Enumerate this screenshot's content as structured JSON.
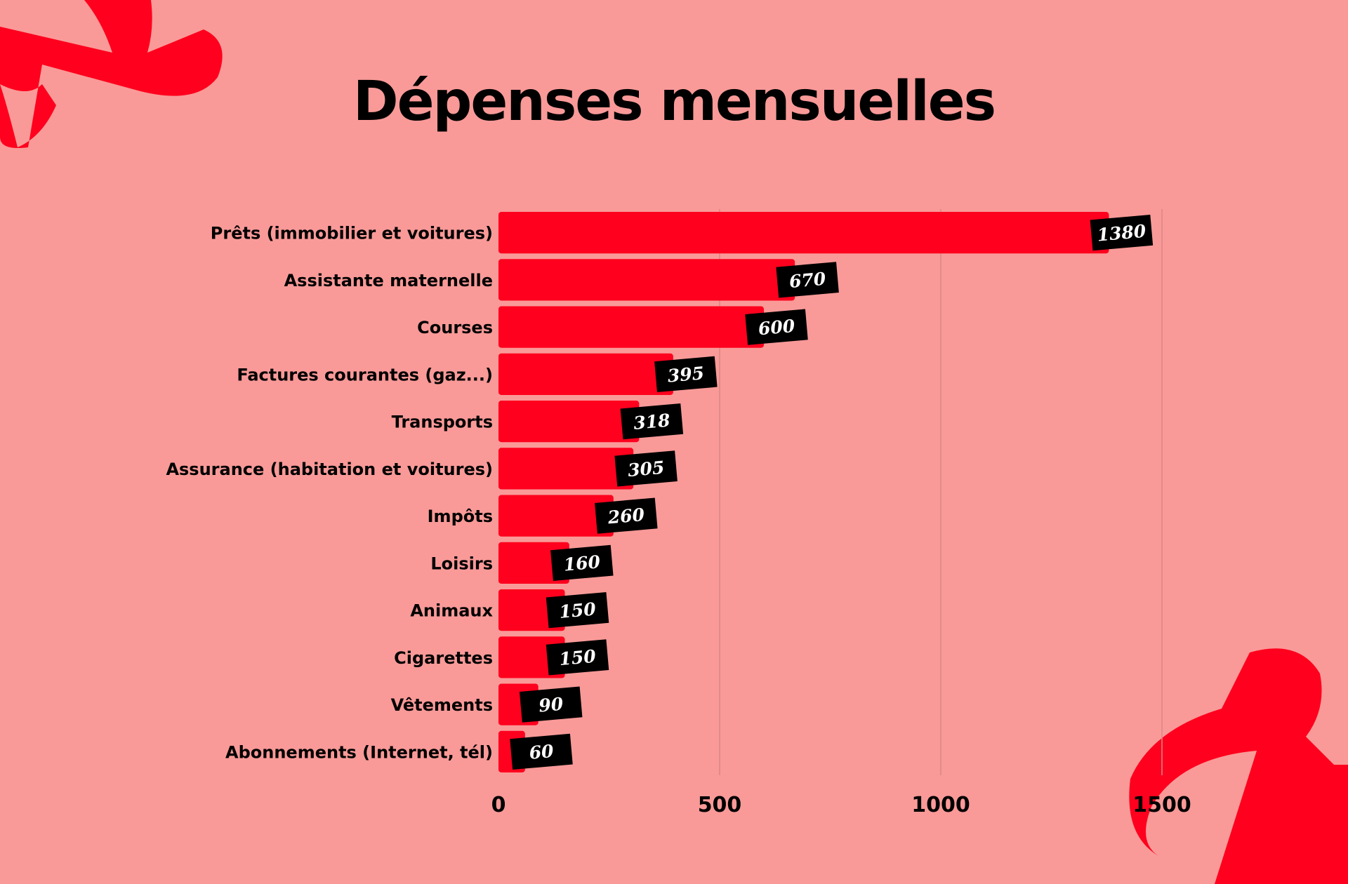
{
  "title": "Dépenses mensuelles",
  "colors": {
    "background": "#F99A98",
    "bar": "#FF001E",
    "label_box": "#000000",
    "label_text": "#FFFFFF",
    "gridline": "#D98886",
    "decoration": "#FF001E"
  },
  "decorations": [
    "abstract-shape-top-left",
    "abstract-shape-bottom-right"
  ],
  "chart_data": {
    "type": "bar",
    "orientation": "horizontal",
    "title": "Dépenses mensuelles",
    "categories": [
      "Prêts (immobilier et voitures)",
      "Assistante maternelle",
      "Courses",
      "Factures courantes (gaz...)",
      "Transports",
      "Assurance (habitation et voitures)",
      "Impôts",
      "Loisirs",
      "Animaux",
      "Cigarettes",
      "Vêtements",
      "Abonnements (Internet, tél)"
    ],
    "values": [
      1380,
      670,
      600,
      395,
      318,
      305,
      260,
      160,
      150,
      150,
      90,
      60
    ],
    "xlim": [
      0,
      1500
    ],
    "xticks": [
      0,
      500,
      1000,
      1500
    ],
    "grid": true,
    "legend": "none"
  }
}
